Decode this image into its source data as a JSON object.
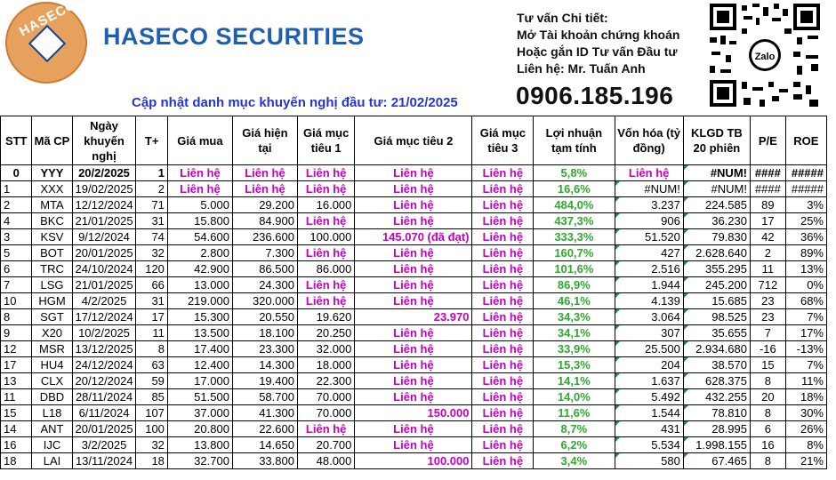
{
  "brand": {
    "logo_text": "HASECO",
    "company_name": "HASECO SECURITIES"
  },
  "update_title": "Cập nhật danh mục khuyến nghị đầu tư: 21/02/2025",
  "contact": {
    "line1": "Tư vấn Chi tiết:",
    "line2": "Mở Tài khoản chứng khoán",
    "line3": "Hoặc gắn ID Tư vấn Đầu tư",
    "line4": "Liên hệ: Mr. Tuấn Anh",
    "phone": "0906.185.196",
    "qr_label": "Zalo"
  },
  "table": {
    "headers": [
      "STT",
      "Mã CP",
      "Ngày khuyến nghị",
      "T+",
      "Giá mua",
      "Giá hiện tại",
      "Giá mục tiêu 1",
      "Giá mục tiêu 2",
      "Giá mục tiêu 3",
      "Lợi nhuận tạm tính",
      "Vốn hóa (tỷ đồng)",
      "KLGD TB 20 phiên",
      "P/E",
      "ROE"
    ],
    "rows": [
      [
        "0",
        "YYY",
        "20/2/2025",
        "1",
        "Liên hệ",
        "Liên hệ",
        "Liên hệ",
        "Liên hệ",
        "Liên hệ",
        "5,8%",
        "Liên hệ",
        "#NUM!",
        "####",
        "#####"
      ],
      [
        "1",
        "XXX",
        "19/02/2025",
        "2",
        "Liên hệ",
        "Liên hệ",
        "Liên hệ",
        "Liên hệ",
        "Liên hệ",
        "16,6%",
        "#NUM!",
        "#NUM!",
        "####",
        "#####"
      ],
      [
        "2",
        "MTA",
        "12/12/2024",
        "71",
        "5.000",
        "29.200",
        "16.000",
        "Liên hệ",
        "Liên hệ",
        "484,0%",
        "3.237",
        "224.585",
        "89",
        "3%"
      ],
      [
        "4",
        "BKC",
        "21/01/2025",
        "31",
        "15.800",
        "84.900",
        "Liên hệ",
        "Liên hệ",
        "Liên hệ",
        "437,3%",
        "906",
        "36.230",
        "17",
        "25%"
      ],
      [
        "3",
        "KSV",
        "9/12/2024",
        "74",
        "54.600",
        "236.600",
        "100.000",
        "145.070 (đã đạt)",
        "Liên hệ",
        "333,3%",
        "51.520",
        "79.830",
        "42",
        "36%"
      ],
      [
        "5",
        "BOT",
        "20/01/2025",
        "32",
        "2.800",
        "7.300",
        "Liên hệ",
        "Liên hệ",
        "Liên hệ",
        "160,7%",
        "427",
        "2.628.640",
        "2",
        "89%"
      ],
      [
        "6",
        "TRC",
        "24/10/2024",
        "120",
        "42.900",
        "86.500",
        "86.000",
        "Liên hệ",
        "Liên hệ",
        "101,6%",
        "2.516",
        "355.295",
        "11",
        "13%"
      ],
      [
        "7",
        "LSG",
        "21/01/2025",
        "66",
        "13.000",
        "24.300",
        "Liên hệ",
        "Liên hệ",
        "Liên hệ",
        "86,9%",
        "1.944",
        "245.200",
        "712",
        "0%"
      ],
      [
        "10",
        "HGM",
        "4/2/2025",
        "31",
        "219.000",
        "320.000",
        "Liên hệ",
        "Liên hệ",
        "Liên hệ",
        "46,1%",
        "4.139",
        "15.685",
        "23",
        "68%"
      ],
      [
        "8",
        "SGT",
        "17/12/2024",
        "17",
        "15.300",
        "20.550",
        "19.620",
        "23.970",
        "Liên hệ",
        "34,3%",
        "3.064",
        "98.525",
        "23",
        "7%"
      ],
      [
        "9",
        "X20",
        "10/2/2025",
        "11",
        "13.500",
        "18.100",
        "20.250",
        "Liên hệ",
        "Liên hệ",
        "34,1%",
        "307",
        "35.655",
        "7",
        "17%"
      ],
      [
        "12",
        "MSR",
        "13/12/2025",
        "8",
        "17.400",
        "23.300",
        "32.000",
        "Liên hệ",
        "Liên hệ",
        "33,9%",
        "25.500",
        "2.934.680",
        "-16",
        "-13%"
      ],
      [
        "17",
        "HU4",
        "24/12/2024",
        "63",
        "12.400",
        "14.300",
        "18.000",
        "Liên hệ",
        "Liên hệ",
        "15,3%",
        "204",
        "38.570",
        "15",
        "7%"
      ],
      [
        "13",
        "CLX",
        "20/12/2024",
        "59",
        "17.000",
        "19.400",
        "22.300",
        "Liên hệ",
        "Liên hệ",
        "14,1%",
        "1.637",
        "628.375",
        "8",
        "11%"
      ],
      [
        "11",
        "DBD",
        "28/11/2024",
        "85",
        "51.500",
        "58.700",
        "70.000",
        "Liên hệ",
        "Liên hệ",
        "14,0%",
        "5.492",
        "432.255",
        "20",
        "18%"
      ],
      [
        "15",
        "L18",
        "6/11/2024",
        "107",
        "37.000",
        "41.300",
        "70.000",
        "150.000",
        "Liên hệ",
        "11,6%",
        "1.544",
        "78.810",
        "8",
        "30%"
      ],
      [
        "14",
        "ANT",
        "20/01/2025",
        "100",
        "20.800",
        "22.600",
        "Liên hệ",
        "Liên hệ",
        "Liên hệ",
        "8,7%",
        "431",
        "28.995",
        "6",
        "26%"
      ],
      [
        "16",
        "IJC",
        "3/2/2025",
        "32",
        "13.800",
        "14.650",
        "20.700",
        "Liên hệ",
        "Liên hệ",
        "6,2%",
        "5.534",
        "1.998.155",
        "16",
        "8%"
      ],
      [
        "18",
        "LAI",
        "13/11/2024",
        "18",
        "32.700",
        "33.800",
        "48.000",
        "100.000",
        "Liên hệ",
        "3,4%",
        "580",
        "67.465",
        "8",
        "21%"
      ]
    ]
  },
  "colors": {
    "brand_blue": "#1f5fb2",
    "title_blue": "#2436d1",
    "contact_pink": "#c400c4",
    "profit_green": "#2eaa2e",
    "logo_orange": "#e6a15c"
  }
}
